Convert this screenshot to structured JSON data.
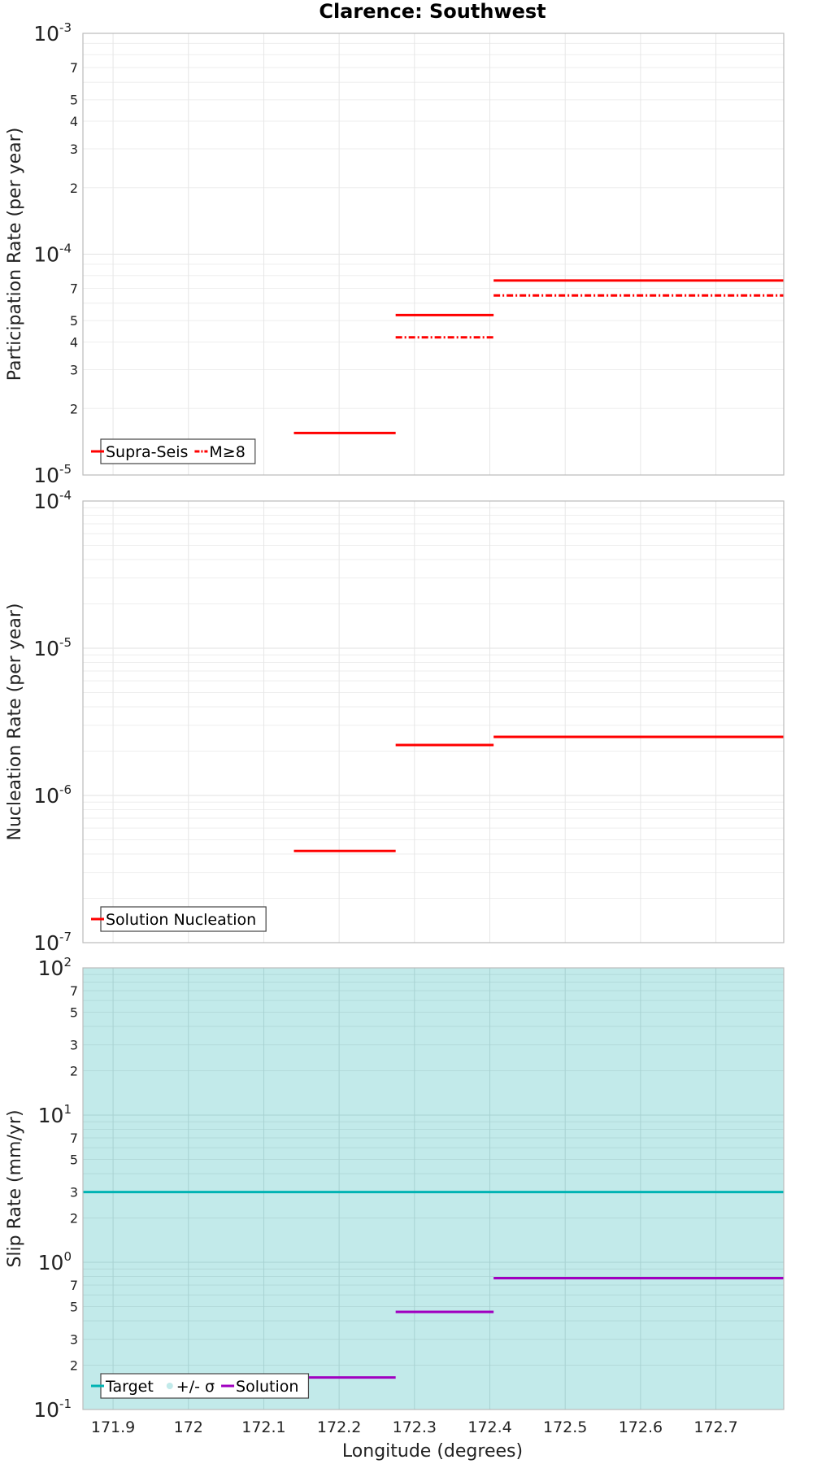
{
  "chart_data": {
    "title": "Clarence: Southwest",
    "xlabel": "Longitude (degrees)",
    "xlim": [
      171.86,
      172.79
    ],
    "xticks": [
      171.9,
      172.0,
      172.1,
      172.2,
      172.3,
      172.4,
      172.5,
      172.6,
      172.7
    ],
    "xtick_labels": [
      "171.9",
      "172",
      "172.1",
      "172.2",
      "172.3",
      "172.4",
      "172.5",
      "172.6",
      "172.7"
    ],
    "panels": [
      {
        "type": "step",
        "ylabel": "Participation Rate (per year)",
        "yscale": "log",
        "ylim_exp": [
          -5,
          -3
        ],
        "decade_labels": [
          {
            "exp": -5,
            "base": "10",
            "sup": "-5"
          },
          {
            "exp": -4,
            "base": "10",
            "sup": "-4"
          },
          {
            "exp": -3,
            "base": "10",
            "sup": "-3"
          }
        ],
        "minor_labels": [
          "2",
          "3",
          "4",
          "5",
          "7"
        ],
        "background": "",
        "series": [
          {
            "name": "Supra-Seis",
            "color": "#ff0000",
            "dash": "solid",
            "segments": [
              {
                "x0": 172.14,
                "x1": 172.275,
                "y": 1.55e-05
              },
              {
                "x0": 172.275,
                "x1": 172.405,
                "y": 5.3e-05
              },
              {
                "x0": 172.405,
                "x1": 172.79,
                "y": 7.6e-05
              }
            ]
          },
          {
            "name": "M≥8",
            "color": "#ff0000",
            "dash": "dashdot",
            "segments": [
              {
                "x0": 172.275,
                "x1": 172.405,
                "y": 4.2e-05
              },
              {
                "x0": 172.405,
                "x1": 172.79,
                "y": 6.5e-05
              }
            ]
          }
        ],
        "legend": [
          {
            "label": "Supra-Seis",
            "swatch": "line",
            "color": "#ff0000",
            "dash": "solid"
          },
          {
            "label": "M≥8",
            "swatch": "line",
            "color": "#ff0000",
            "dash": "dashdot"
          }
        ]
      },
      {
        "type": "step",
        "ylabel": "Nucleation Rate (per year)",
        "yscale": "log",
        "ylim_exp": [
          -7,
          -4
        ],
        "decade_labels": [
          {
            "exp": -7,
            "base": "10",
            "sup": "-7"
          },
          {
            "exp": -6,
            "base": "10",
            "sup": "-6"
          },
          {
            "exp": -5,
            "base": "10",
            "sup": "-5"
          },
          {
            "exp": -4,
            "base": "10",
            "sup": "-4"
          }
        ],
        "minor_labels": [],
        "background": "",
        "series": [
          {
            "name": "Solution Nucleation",
            "color": "#ff0000",
            "dash": "solid",
            "segments": [
              {
                "x0": 172.14,
                "x1": 172.275,
                "y": 4.2e-07
              },
              {
                "x0": 172.275,
                "x1": 172.405,
                "y": 2.2e-06
              },
              {
                "x0": 172.405,
                "x1": 172.79,
                "y": 2.5e-06
              }
            ]
          }
        ],
        "legend": [
          {
            "label": "Solution Nucleation",
            "swatch": "line",
            "color": "#ff0000",
            "dash": "solid"
          }
        ]
      },
      {
        "type": "step",
        "ylabel": "Slip Rate (mm/yr)",
        "yscale": "log",
        "ylim_exp": [
          -1,
          2
        ],
        "decade_labels": [
          {
            "exp": -1,
            "base": "10",
            "sup": "-1"
          },
          {
            "exp": 0,
            "base": "10",
            "sup": "0"
          },
          {
            "exp": 1,
            "base": "10",
            "sup": "1"
          },
          {
            "exp": 2,
            "base": "10",
            "sup": "2"
          }
        ],
        "minor_labels": [
          "2",
          "3",
          "5",
          "7"
        ],
        "background": "#c2eaea",
        "series": [
          {
            "name": "Target",
            "color": "#00b3b3",
            "dash": "solid",
            "segments": [
              {
                "x0": 171.86,
                "x1": 172.79,
                "y": 3.0
              }
            ]
          },
          {
            "name": "Solution",
            "color": "#a000c0",
            "dash": "solid",
            "segments": [
              {
                "x0": 172.14,
                "x1": 172.275,
                "y": 0.165
              },
              {
                "x0": 172.275,
                "x1": 172.405,
                "y": 0.46
              },
              {
                "x0": 172.405,
                "x1": 172.79,
                "y": 0.78
              }
            ]
          }
        ],
        "legend": [
          {
            "label": "Target",
            "swatch": "line",
            "color": "#00b3b3",
            "dash": "solid"
          },
          {
            "label": "+/- σ",
            "swatch": "dot",
            "color": "#c2eaea",
            "dash": "solid"
          },
          {
            "label": "Solution",
            "swatch": "line",
            "color": "#a000c0",
            "dash": "solid"
          }
        ]
      }
    ]
  }
}
